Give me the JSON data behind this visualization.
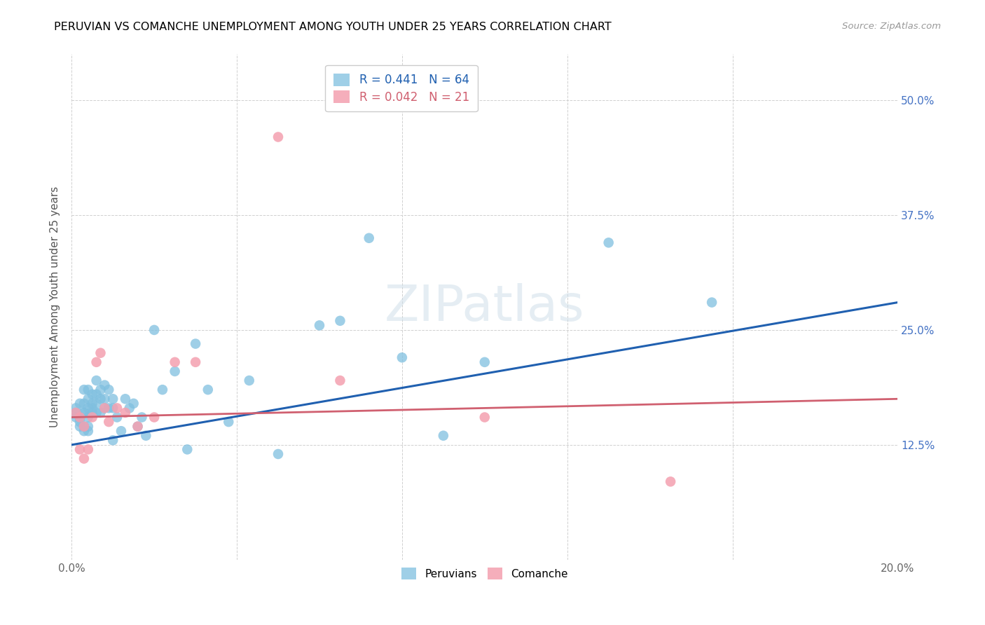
{
  "title": "PERUVIAN VS COMANCHE UNEMPLOYMENT AMONG YOUTH UNDER 25 YEARS CORRELATION CHART",
  "source": "Source: ZipAtlas.com",
  "ylabel": "Unemployment Among Youth under 25 years",
  "xlim": [
    0.0,
    0.2
  ],
  "ylim": [
    0.0,
    0.55
  ],
  "xticks": [
    0.0,
    0.04,
    0.08,
    0.12,
    0.16,
    0.2
  ],
  "xticklabels": [
    "0.0%",
    "",
    "",
    "",
    "",
    "20.0%"
  ],
  "yticks": [
    0.0,
    0.125,
    0.25,
    0.375,
    0.5
  ],
  "ytick_labels_right": [
    "",
    "12.5%",
    "25.0%",
    "37.5%",
    "50.0%"
  ],
  "peruvian_color": "#7fbfdf",
  "comanche_color": "#f4a0b0",
  "peruvian_R": 0.441,
  "peruvian_N": 64,
  "comanche_R": 0.042,
  "comanche_N": 21,
  "blue_line_color": "#2060b0",
  "pink_line_color": "#d06070",
  "peruvian_x": [
    0.001,
    0.001,
    0.001,
    0.002,
    0.002,
    0.002,
    0.002,
    0.002,
    0.003,
    0.003,
    0.003,
    0.003,
    0.003,
    0.003,
    0.004,
    0.004,
    0.004,
    0.004,
    0.004,
    0.004,
    0.005,
    0.005,
    0.005,
    0.005,
    0.006,
    0.006,
    0.006,
    0.006,
    0.007,
    0.007,
    0.007,
    0.008,
    0.008,
    0.008,
    0.009,
    0.009,
    0.01,
    0.01,
    0.01,
    0.011,
    0.012,
    0.013,
    0.014,
    0.015,
    0.016,
    0.017,
    0.018,
    0.02,
    0.022,
    0.025,
    0.028,
    0.03,
    0.033,
    0.038,
    0.043,
    0.05,
    0.06,
    0.065,
    0.072,
    0.08,
    0.09,
    0.1,
    0.13,
    0.155
  ],
  "peruvian_y": [
    0.155,
    0.165,
    0.16,
    0.155,
    0.17,
    0.155,
    0.145,
    0.15,
    0.16,
    0.16,
    0.145,
    0.14,
    0.185,
    0.17,
    0.185,
    0.175,
    0.165,
    0.155,
    0.145,
    0.14,
    0.18,
    0.17,
    0.165,
    0.16,
    0.195,
    0.18,
    0.17,
    0.16,
    0.185,
    0.175,
    0.16,
    0.19,
    0.175,
    0.165,
    0.185,
    0.165,
    0.175,
    0.165,
    0.13,
    0.155,
    0.14,
    0.175,
    0.165,
    0.17,
    0.145,
    0.155,
    0.135,
    0.25,
    0.185,
    0.205,
    0.12,
    0.235,
    0.185,
    0.15,
    0.195,
    0.115,
    0.255,
    0.26,
    0.35,
    0.22,
    0.135,
    0.215,
    0.345,
    0.28
  ],
  "comanche_x": [
    0.001,
    0.002,
    0.002,
    0.003,
    0.003,
    0.004,
    0.005,
    0.006,
    0.007,
    0.008,
    0.009,
    0.011,
    0.013,
    0.016,
    0.02,
    0.025,
    0.03,
    0.05,
    0.065,
    0.1,
    0.145
  ],
  "comanche_y": [
    0.16,
    0.155,
    0.12,
    0.145,
    0.11,
    0.12,
    0.155,
    0.215,
    0.225,
    0.165,
    0.15,
    0.165,
    0.16,
    0.145,
    0.155,
    0.215,
    0.215,
    0.46,
    0.195,
    0.155,
    0.085
  ]
}
